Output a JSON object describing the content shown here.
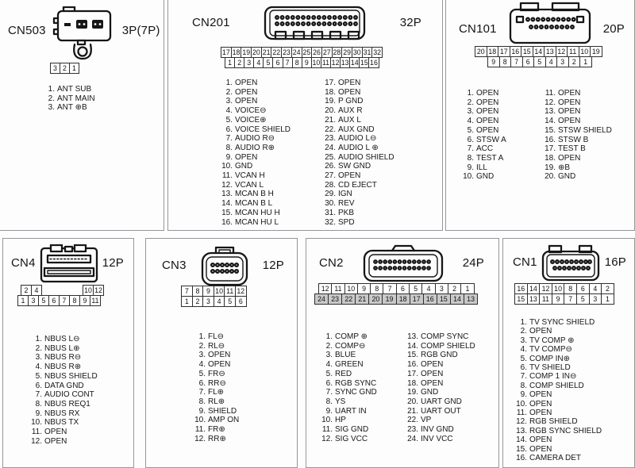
{
  "panels": [
    {
      "name": "CN503",
      "size": "3P(7P)",
      "grid": {
        "rows": [
          [
            "3",
            "2",
            "1"
          ]
        ]
      },
      "pins": [
        {
          "n": "1",
          "label": "ANT SUB"
        },
        {
          "n": "2",
          "label": "ANT MAIN"
        },
        {
          "n": "3",
          "label": "ANT ⊕B"
        }
      ]
    },
    {
      "name": "CN201",
      "size": "32P",
      "grid": {
        "rows": [
          [
            "17",
            "18",
            "19",
            "20",
            "21",
            "22",
            "23",
            "24",
            "25",
            "26",
            "27",
            "28",
            "29",
            "30",
            "31",
            "32"
          ],
          [
            "1",
            "2",
            "3",
            "4",
            "5",
            "6",
            "7",
            "8",
            "9",
            "10",
            "11",
            "12",
            "13",
            "14",
            "15",
            "16"
          ]
        ]
      },
      "pins": [
        {
          "n": "1",
          "label": "OPEN"
        },
        {
          "n": "2",
          "label": "OPEN"
        },
        {
          "n": "3",
          "label": "OPEN"
        },
        {
          "n": "4",
          "label": "VOICE⊖"
        },
        {
          "n": "5",
          "label": "VOICE⊕"
        },
        {
          "n": "6",
          "label": "VOICE SHIELD"
        },
        {
          "n": "7",
          "label": "AUDIO R⊖"
        },
        {
          "n": "8",
          "label": "AUDIO R⊕"
        },
        {
          "n": "9",
          "label": "OPEN"
        },
        {
          "n": "10",
          "label": "GND"
        },
        {
          "n": "11",
          "label": "VCAN H"
        },
        {
          "n": "12",
          "label": "VCAN L"
        },
        {
          "n": "13",
          "label": "MCAN B H"
        },
        {
          "n": "14",
          "label": "MCAN B L"
        },
        {
          "n": "15",
          "label": "MCAN HU H"
        },
        {
          "n": "16",
          "label": "MCAN HU L"
        },
        {
          "n": "17",
          "label": "OPEN"
        },
        {
          "n": "18",
          "label": "OPEN"
        },
        {
          "n": "19",
          "label": "P GND"
        },
        {
          "n": "20",
          "label": "AUX R"
        },
        {
          "n": "21",
          "label": "AUX L"
        },
        {
          "n": "22",
          "label": "AUX GND"
        },
        {
          "n": "23",
          "label": "AUDIO L⊖"
        },
        {
          "n": "24",
          "label": "AUDIO L ⊕"
        },
        {
          "n": "25",
          "label": "AUDIO SHIELD"
        },
        {
          "n": "26",
          "label": "SW GND"
        },
        {
          "n": "27",
          "label": "OPEN"
        },
        {
          "n": "28",
          "label": "CD EJECT"
        },
        {
          "n": "29",
          "label": "IGN"
        },
        {
          "n": "30",
          "label": "REV"
        },
        {
          "n": "31",
          "label": "PKB"
        },
        {
          "n": "32",
          "label": "SPD"
        }
      ]
    },
    {
      "name": "CN101",
      "size": "20P",
      "grid": {
        "rows": [
          [
            "20",
            "18",
            "17",
            "16",
            "15",
            "14",
            "13",
            "12",
            "11",
            "10",
            "19"
          ],
          [
            "9",
            "8",
            "7",
            "6",
            "5",
            "4",
            "3",
            "2",
            "1"
          ]
        ]
      },
      "pins": [
        {
          "n": "1",
          "label": "OPEN"
        },
        {
          "n": "2",
          "label": "OPEN"
        },
        {
          "n": "3",
          "label": "OPEN"
        },
        {
          "n": "4",
          "label": "OPEN"
        },
        {
          "n": "5",
          "label": "OPEN"
        },
        {
          "n": "6",
          "label": "STSW A"
        },
        {
          "n": "7",
          "label": "ACC"
        },
        {
          "n": "8",
          "label": "TEST A"
        },
        {
          "n": "9",
          "label": "ILL"
        },
        {
          "n": "10",
          "label": "GND"
        },
        {
          "n": "11",
          "label": "OPEN"
        },
        {
          "n": "12",
          "label": "OPEN"
        },
        {
          "n": "13",
          "label": "OPEN"
        },
        {
          "n": "14",
          "label": "OPEN"
        },
        {
          "n": "15",
          "label": "STSW SHIELD"
        },
        {
          "n": "16",
          "label": "STSW B"
        },
        {
          "n": "17",
          "label": "TEST B"
        },
        {
          "n": "18",
          "label": "OPEN"
        },
        {
          "n": "19",
          "label": "⊕B"
        },
        {
          "n": "20",
          "label": "GND"
        }
      ]
    },
    {
      "name": "CN4",
      "size": "12P",
      "grid": {
        "rows": [
          [
            "2",
            "4",
            "",
            "",
            "",
            "",
            "10",
            "12"
          ],
          [
            "1",
            "3",
            "5",
            "6",
            "7",
            "8",
            "9",
            "11"
          ]
        ]
      },
      "pins": [
        {
          "n": "1",
          "label": "NBUS L⊖"
        },
        {
          "n": "2",
          "label": "NBUS L⊕"
        },
        {
          "n": "3",
          "label": "NBUS R⊖"
        },
        {
          "n": "4",
          "label": "NBUS R⊕"
        },
        {
          "n": "5",
          "label": "NBUS SHIELD"
        },
        {
          "n": "6",
          "label": "DATA GND"
        },
        {
          "n": "7",
          "label": "AUDIO CONT"
        },
        {
          "n": "8",
          "label": "NBUS REQ1"
        },
        {
          "n": "9",
          "label": "NBUS RX"
        },
        {
          "n": "10",
          "label": "NBUS TX"
        },
        {
          "n": "11",
          "label": "OPEN"
        },
        {
          "n": "12",
          "label": "OPEN"
        }
      ]
    },
    {
      "name": "CN3",
      "size": "12P",
      "grid": {
        "rows": [
          [
            "7",
            "8",
            "9",
            "10",
            "11",
            "12"
          ],
          [
            "1",
            "2",
            "3",
            "4",
            "5",
            "6"
          ]
        ]
      },
      "pins": [
        {
          "n": "1",
          "label": "FL⊖"
        },
        {
          "n": "2",
          "label": "RL⊖"
        },
        {
          "n": "3",
          "label": "OPEN"
        },
        {
          "n": "4",
          "label": "OPEN"
        },
        {
          "n": "5",
          "label": "FR⊖"
        },
        {
          "n": "6",
          "label": "RR⊖"
        },
        {
          "n": "7",
          "label": "FL⊕"
        },
        {
          "n": "8",
          "label": "RL⊕"
        },
        {
          "n": "9",
          "label": "SHIELD"
        },
        {
          "n": "10",
          "label": "AMP ON"
        },
        {
          "n": "11",
          "label": "FR⊕"
        },
        {
          "n": "12",
          "label": "RR⊕"
        }
      ]
    },
    {
      "name": "CN2",
      "size": "24P",
      "grid": {
        "rows": [
          [
            "12",
            "11",
            "10",
            "9",
            "8",
            "7",
            "6",
            "5",
            "4",
            "3",
            "2",
            "1"
          ],
          [
            "24",
            "23",
            "22",
            "21",
            "20",
            "19",
            "18",
            "17",
            "16",
            "15",
            "14",
            "13"
          ]
        ]
      },
      "pins": [
        {
          "n": "1",
          "label": "COMP ⊕"
        },
        {
          "n": "2",
          "label": "COMP⊖"
        },
        {
          "n": "3",
          "label": "BLUE"
        },
        {
          "n": "4",
          "label": "GREEN"
        },
        {
          "n": "5",
          "label": "RED"
        },
        {
          "n": "6",
          "label": "RGB SYNC"
        },
        {
          "n": "7",
          "label": "SYNC GND"
        },
        {
          "n": "8",
          "label": "YS"
        },
        {
          "n": "9",
          "label": "UART IN"
        },
        {
          "n": "10",
          "label": "HP"
        },
        {
          "n": "11",
          "label": "SIG GND"
        },
        {
          "n": "12",
          "label": "SIG VCC"
        },
        {
          "n": "13",
          "label": "COMP SYNC"
        },
        {
          "n": "14",
          "label": "COMP SHIELD"
        },
        {
          "n": "15",
          "label": "RGB GND"
        },
        {
          "n": "16",
          "label": "OPEN"
        },
        {
          "n": "17",
          "label": "OPEN"
        },
        {
          "n": "18",
          "label": "OPEN"
        },
        {
          "n": "19",
          "label": "GND"
        },
        {
          "n": "20",
          "label": "UART GND"
        },
        {
          "n": "21",
          "label": "UART OUT"
        },
        {
          "n": "22",
          "label": "VP"
        },
        {
          "n": "23",
          "label": "INV GND"
        },
        {
          "n": "24",
          "label": "INV VCC"
        }
      ]
    },
    {
      "name": "CN1",
      "size": "16P",
      "grid": {
        "rows": [
          [
            "16",
            "14",
            "12",
            "10",
            "8",
            "6",
            "4",
            "2"
          ],
          [
            "15",
            "13",
            "11",
            "9",
            "7",
            "5",
            "3",
            "1"
          ]
        ]
      },
      "pins": [
        {
          "n": "1",
          "label": "TV SYNC SHIELD"
        },
        {
          "n": "2",
          "label": "OPEN"
        },
        {
          "n": "3",
          "label": "TV COMP ⊕"
        },
        {
          "n": "4",
          "label": "TV COMP⊖"
        },
        {
          "n": "5",
          "label": "COMP IN⊕"
        },
        {
          "n": "6",
          "label": "TV SHIELD"
        },
        {
          "n": "7",
          "label": "COMP 1 IN⊖"
        },
        {
          "n": "8",
          "label": "COMP SHIELD"
        },
        {
          "n": "9",
          "label": "OPEN"
        },
        {
          "n": "10",
          "label": "OPEN"
        },
        {
          "n": "11",
          "label": "OPEN"
        },
        {
          "n": "12",
          "label": "RGB SHIELD"
        },
        {
          "n": "13",
          "label": "RGB SYNC SHIELD"
        },
        {
          "n": "14",
          "label": "OPEN"
        },
        {
          "n": "15",
          "label": "OPEN"
        },
        {
          "n": "16",
          "label": "CAMERA DET"
        }
      ]
    }
  ]
}
